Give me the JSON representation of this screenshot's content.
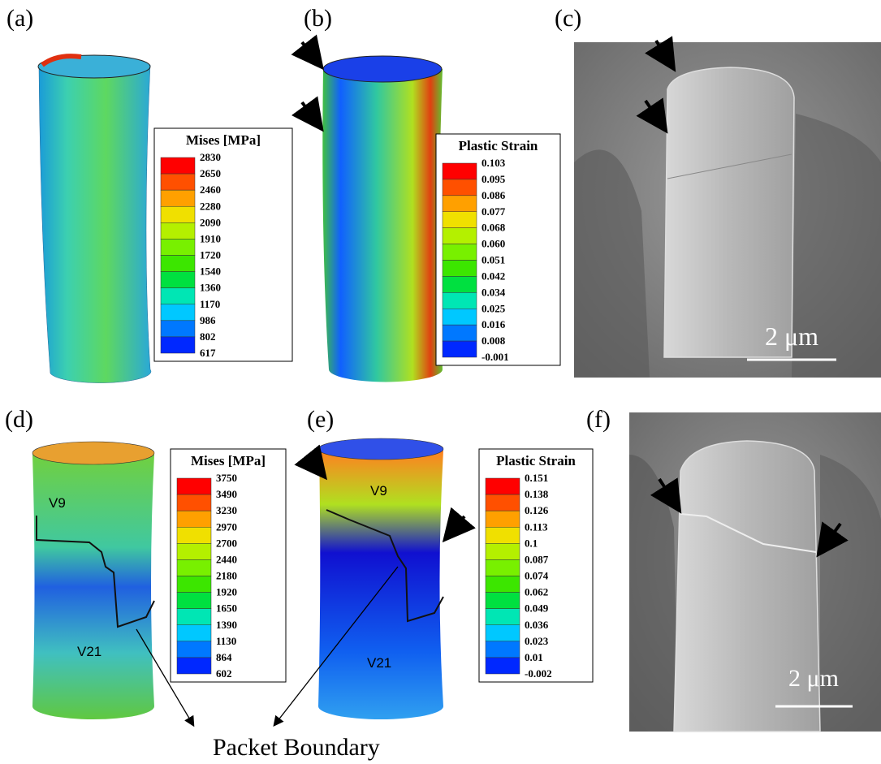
{
  "panels": [
    {
      "label": "(a)",
      "legend_title": "Mises [MPa]",
      "legend_values": [
        "2830",
        "2650",
        "2460",
        "2280",
        "2090",
        "1910",
        "1720",
        "1540",
        "1360",
        "1170",
        "986",
        "802",
        "617"
      ]
    },
    {
      "label": "(b)",
      "legend_title": "Plastic Strain",
      "legend_values": [
        "0.103",
        "0.095",
        "0.086",
        "0.077",
        "0.068",
        "0.060",
        "0.051",
        "0.042",
        "0.034",
        "0.025",
        "0.016",
        "0.008",
        "-0.001"
      ]
    },
    {
      "label": "(c)",
      "scale_bar": "2 μm"
    },
    {
      "label": "(d)",
      "legend_title": "Mises [MPa]",
      "legend_values": [
        "3750",
        "3490",
        "3230",
        "2970",
        "2700",
        "2440",
        "2180",
        "1920",
        "1650",
        "1390",
        "1130",
        "864",
        "602"
      ],
      "variants": [
        "V9",
        "V21"
      ]
    },
    {
      "label": "(e)",
      "legend_title": "Plastic Strain",
      "legend_values": [
        "0.151",
        "0.138",
        "0.126",
        "0.113",
        "0.1",
        "0.087",
        "0.074",
        "0.062",
        "0.049",
        "0.036",
        "0.023",
        "0.01",
        "-0.002"
      ],
      "variants": [
        "V9",
        "V21"
      ]
    },
    {
      "label": "(f)",
      "scale_bar": "2 μm"
    }
  ],
  "caption": "Packet Boundary"
}
